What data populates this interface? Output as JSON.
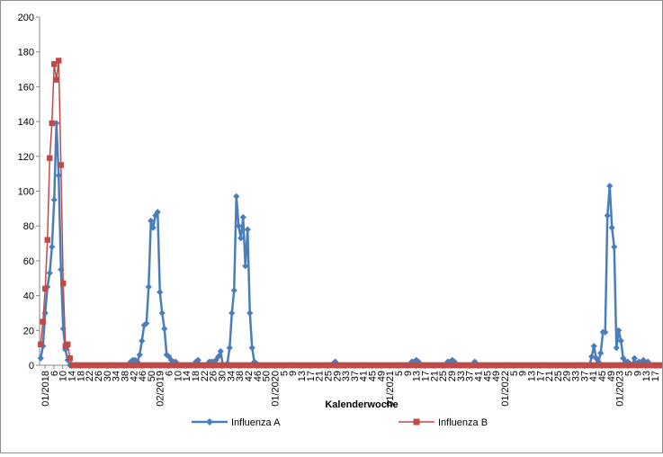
{
  "chart_data": {
    "type": "line",
    "title": "",
    "xlabel": "Kalenderwoche",
    "ylabel": "",
    "ylim": [
      0,
      200
    ],
    "yticks": [
      0,
      20,
      40,
      60,
      80,
      100,
      120,
      140,
      160,
      180,
      200
    ],
    "grid": false,
    "legend_position": "bottom",
    "x_ticks": [
      "01/2018",
      "6",
      "10",
      "14",
      "18",
      "22",
      "26",
      "30",
      "34",
      "38",
      "42",
      "46",
      "50",
      "02/2019",
      "6",
      "10",
      "14",
      "18",
      "22",
      "26",
      "30",
      "34",
      "38",
      "42",
      "46",
      "50",
      "01/2020",
      "5",
      "9",
      "13",
      "17",
      "21",
      "25",
      "29",
      "33",
      "37",
      "41",
      "45",
      "49",
      "01/2021",
      "5",
      "9",
      "13",
      "17",
      "21",
      "25",
      "29",
      "33",
      "37",
      "41",
      "45",
      "49",
      "01/2022",
      "5",
      "9",
      "13",
      "17",
      "21",
      "25",
      "29",
      "33",
      "37",
      "41",
      "45",
      "49",
      "01/2023",
      "5",
      "9",
      "13",
      "17"
    ],
    "series": [
      {
        "name": "Influenza A",
        "color": "#4a7ebb",
        "marker": "diamond",
        "values": [
          4,
          11,
          30,
          45,
          53,
          68,
          95,
          139,
          109,
          55,
          21,
          9,
          3,
          0,
          0,
          0,
          0,
          0,
          0,
          0,
          0,
          0,
          0,
          0,
          0,
          0,
          0,
          0,
          0,
          0,
          0,
          0,
          0,
          0,
          0,
          0,
          0,
          0,
          0,
          0,
          2,
          3,
          3,
          2,
          6,
          14,
          23,
          24,
          45,
          83,
          79,
          86,
          88,
          42,
          30,
          21,
          6,
          5,
          3,
          2,
          2,
          0,
          0,
          0,
          0,
          0,
          0,
          0,
          0,
          2,
          3,
          0,
          0,
          0,
          0,
          2,
          2,
          2,
          3,
          5,
          8,
          0,
          0,
          1,
          10,
          30,
          43,
          97,
          80,
          73,
          85,
          57,
          78,
          30,
          10,
          2,
          1,
          0,
          0,
          0,
          0,
          0,
          0,
          0,
          0,
          0,
          0,
          0,
          0,
          0,
          0,
          0,
          0,
          0,
          0,
          0,
          0,
          0,
          0,
          0,
          0,
          0,
          0,
          0,
          0,
          0,
          0,
          0,
          0,
          0,
          1,
          2,
          0,
          0,
          0,
          0,
          0,
          0,
          0,
          0,
          0,
          0,
          0,
          0,
          0,
          0,
          0,
          0,
          0,
          0,
          0,
          0,
          0,
          0,
          0,
          0,
          0,
          0,
          0,
          0,
          0,
          0,
          0,
          0,
          0,
          2,
          2,
          3,
          2,
          0,
          0,
          0,
          0,
          0,
          0,
          0,
          0,
          0,
          0,
          0,
          0,
          2,
          2,
          3,
          2,
          0,
          0,
          0,
          0,
          0,
          0,
          0,
          0,
          2,
          0,
          0,
          0,
          0,
          0,
          0,
          0,
          0,
          0,
          0,
          0,
          0,
          0,
          0,
          0,
          0,
          0,
          0,
          0,
          0,
          0,
          0,
          0,
          0,
          0,
          0,
          0,
          0,
          0,
          0,
          0,
          0,
          0,
          0,
          0,
          0,
          0,
          0,
          0,
          0,
          0,
          0,
          0,
          0,
          0,
          0,
          0,
          0,
          0,
          0,
          0,
          5,
          11,
          4,
          2,
          7,
          19,
          19,
          86,
          103,
          79,
          68,
          10,
          20,
          14,
          4,
          2,
          2,
          1,
          0,
          4,
          0,
          2,
          0,
          3,
          1,
          2,
          0,
          0,
          0,
          0,
          0
        ]
      },
      {
        "name": "Influenza B",
        "color": "#be4b48",
        "marker": "square",
        "values": [
          12,
          25,
          44,
          72,
          119,
          139,
          173,
          164,
          175,
          115,
          47,
          11,
          12,
          4,
          0,
          0,
          0,
          0,
          0,
          0,
          0,
          0,
          0,
          0,
          0,
          0,
          0,
          0,
          0,
          0,
          0,
          0,
          0,
          0,
          0,
          0,
          0,
          0,
          0,
          0,
          0,
          0,
          0,
          0,
          0,
          0,
          0,
          0,
          0,
          0,
          0,
          0,
          0,
          0,
          0,
          0,
          0,
          0,
          0,
          0,
          0,
          0,
          0,
          0,
          0,
          0,
          0,
          0,
          0,
          0,
          0,
          0,
          0,
          0,
          0,
          0,
          0,
          0,
          0,
          0,
          0,
          0,
          0,
          0,
          0,
          0,
          0,
          0,
          0,
          0,
          0,
          0,
          0,
          0,
          0,
          0,
          0,
          0,
          0,
          0,
          0,
          0,
          0,
          0,
          0,
          0,
          0,
          0,
          0,
          0,
          0,
          0,
          0,
          0,
          0,
          0,
          0,
          0,
          0,
          0,
          0,
          0,
          0,
          0,
          0,
          0,
          0,
          0,
          0,
          0,
          0,
          0,
          0,
          0,
          0,
          0,
          0,
          0,
          0,
          0,
          0,
          0,
          0,
          0,
          0,
          0,
          0,
          0,
          0,
          0,
          0,
          0,
          0,
          0,
          0,
          0,
          0,
          0,
          0,
          0,
          0,
          0,
          0,
          0,
          0,
          0,
          0,
          0,
          0,
          0,
          0,
          0,
          0,
          0,
          0,
          0,
          0,
          0,
          0,
          0,
          0,
          0,
          0,
          0,
          0,
          0,
          0,
          0,
          0,
          0,
          0,
          0,
          0,
          0,
          0,
          0,
          0,
          0,
          0,
          0,
          0,
          0,
          0,
          0,
          0,
          0,
          0,
          0,
          0,
          0,
          0,
          0,
          0,
          0,
          0,
          0,
          0,
          0,
          0,
          0,
          0,
          0,
          0,
          0,
          0,
          0,
          0,
          0,
          0,
          0,
          0,
          0,
          0,
          0,
          0,
          0,
          0,
          0,
          0,
          0,
          0,
          0,
          0,
          0,
          0,
          0,
          0,
          0,
          0,
          0,
          0,
          0,
          0,
          0,
          0,
          0,
          0,
          0,
          0,
          0,
          0,
          0,
          0,
          0,
          0,
          0,
          0,
          0,
          0,
          0,
          0,
          0,
          0,
          0,
          0,
          0,
          0,
          0,
          0,
          0,
          0,
          0,
          0,
          0,
          0,
          0,
          0,
          0
        ]
      }
    ]
  }
}
